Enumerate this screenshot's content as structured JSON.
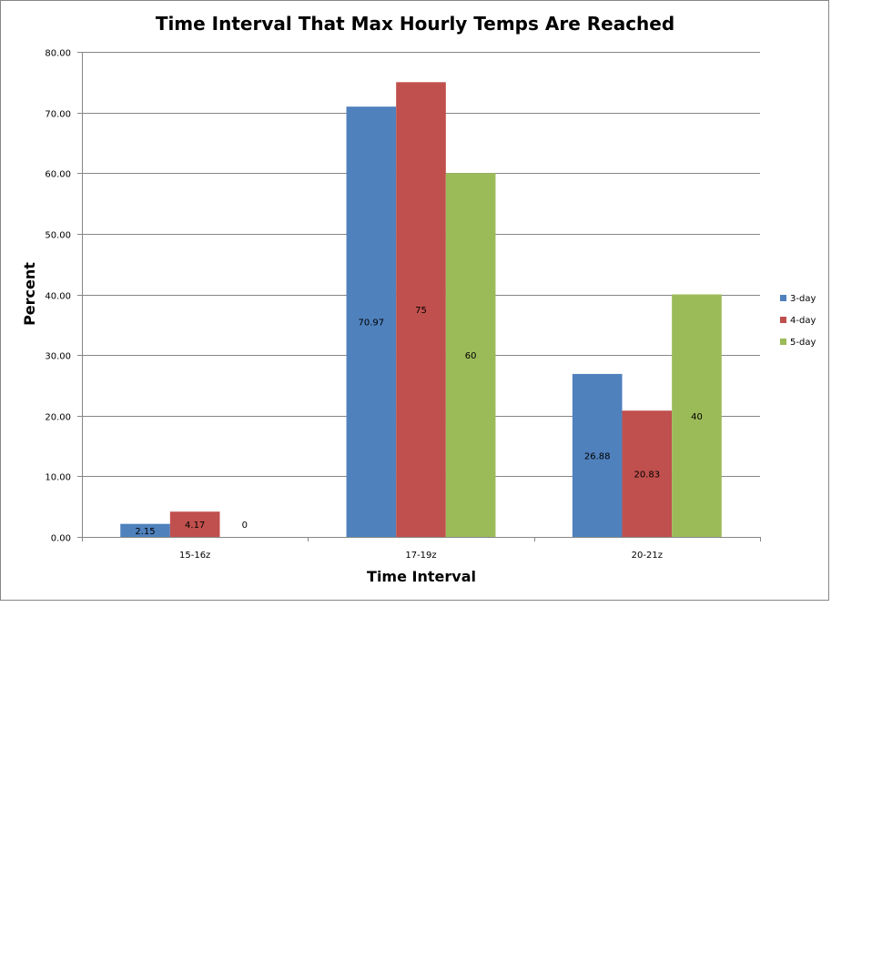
{
  "chart_data": {
    "type": "bar",
    "title": "Time Interval That Max Hourly Temps Are Reached",
    "xlabel": "Time Interval",
    "ylabel": "Percent",
    "categories": [
      "15-16z",
      "17-19z",
      "20-21z"
    ],
    "ylim": [
      0,
      80
    ],
    "yticks": [
      "0.00",
      "10.00",
      "20.00",
      "30.00",
      "40.00",
      "50.00",
      "60.00",
      "70.00",
      "80.00"
    ],
    "grid": true,
    "legend_position": "right",
    "series": [
      {
        "name": "3-day",
        "color": "#4f81bd",
        "values": [
          2.15,
          70.97,
          26.88
        ],
        "labels": [
          "2.15",
          "70.97",
          "26.88"
        ]
      },
      {
        "name": "4-day",
        "color": "#c0504d",
        "values": [
          4.17,
          75,
          20.83
        ],
        "labels": [
          "4.17",
          "75",
          "20.83"
        ]
      },
      {
        "name": "5-day",
        "color": "#9bbb59",
        "values": [
          0,
          60,
          40
        ],
        "labels": [
          "0",
          "60",
          "40"
        ]
      }
    ]
  }
}
